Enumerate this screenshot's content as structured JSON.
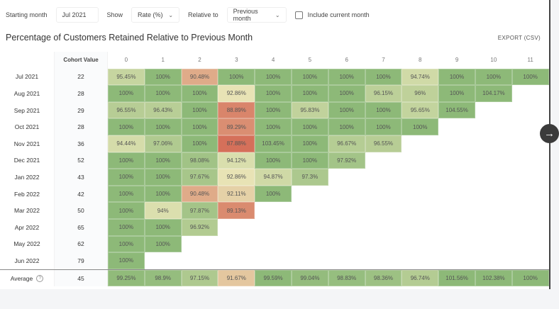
{
  "controls": {
    "starting_month_label": "Starting month",
    "starting_month_value": "Jul 2021",
    "show_label": "Show",
    "show_value": "Rate (%)",
    "relative_label": "Relative to",
    "relative_value": "Previous month",
    "include_current_label": "Include current month",
    "include_current_checked": false
  },
  "title": "Percentage of Customers Retained Relative to Previous Month",
  "export_label": "EXPORT (CSV)",
  "table": {
    "cohort_header": "Cohort Value",
    "periods": [
      "0",
      "1",
      "2",
      "3",
      "4",
      "5",
      "6",
      "7",
      "8",
      "9",
      "10",
      "11"
    ],
    "rows": [
      {
        "label": "Jul 2021",
        "value": "22",
        "cells": [
          "95.45%",
          "100%",
          "90.48%",
          "100%",
          "100%",
          "100%",
          "100%",
          "100%",
          "94.74%",
          "100%",
          "100%",
          "100%"
        ]
      },
      {
        "label": "Aug 2021",
        "value": "28",
        "cells": [
          "100%",
          "100%",
          "100%",
          "92.86%",
          "100%",
          "100%",
          "100%",
          "96.15%",
          "96%",
          "100%",
          "104.17%"
        ]
      },
      {
        "label": "Sep 2021",
        "value": "29",
        "cells": [
          "96.55%",
          "96.43%",
          "100%",
          "88.89%",
          "100%",
          "95.83%",
          "100%",
          "100%",
          "95.65%",
          "104.55%"
        ]
      },
      {
        "label": "Oct 2021",
        "value": "28",
        "cells": [
          "100%",
          "100%",
          "100%",
          "89.29%",
          "100%",
          "100%",
          "100%",
          "100%",
          "100%"
        ]
      },
      {
        "label": "Nov 2021",
        "value": "36",
        "cells": [
          "94.44%",
          "97.06%",
          "100%",
          "87.88%",
          "103.45%",
          "100%",
          "96.67%",
          "96.55%"
        ]
      },
      {
        "label": "Dec 2021",
        "value": "52",
        "cells": [
          "100%",
          "100%",
          "98.08%",
          "94.12%",
          "100%",
          "100%",
          "97.92%"
        ]
      },
      {
        "label": "Jan 2022",
        "value": "43",
        "cells": [
          "100%",
          "100%",
          "97.67%",
          "92.86%",
          "94.87%",
          "97.3%"
        ]
      },
      {
        "label": "Feb 2022",
        "value": "42",
        "cells": [
          "100%",
          "100%",
          "90.48%",
          "92.11%",
          "100%"
        ]
      },
      {
        "label": "Mar 2022",
        "value": "50",
        "cells": [
          "100%",
          "94%",
          "97.87%",
          "89.13%"
        ]
      },
      {
        "label": "Apr 2022",
        "value": "65",
        "cells": [
          "100%",
          "100%",
          "96.92%"
        ]
      },
      {
        "label": "May 2022",
        "value": "62",
        "cells": [
          "100%",
          "100%"
        ]
      },
      {
        "label": "Jun 2022",
        "value": "79",
        "cells": [
          "100%"
        ]
      }
    ],
    "average": {
      "label": "Average",
      "value": "45",
      "help_icon": "question-circle-icon",
      "cells": [
        "99.25%",
        "98.9%",
        "97.15%",
        "91.67%",
        "99.59%",
        "99.04%",
        "98.83%",
        "98.36%",
        "96.74%",
        "101.56%",
        "102.38%",
        "100%"
      ]
    }
  },
  "colors": {
    "high": "#8db978",
    "mid": "#e9e6b8",
    "low": "#d5705a"
  },
  "next_button_icon": "arrow-right-icon"
}
